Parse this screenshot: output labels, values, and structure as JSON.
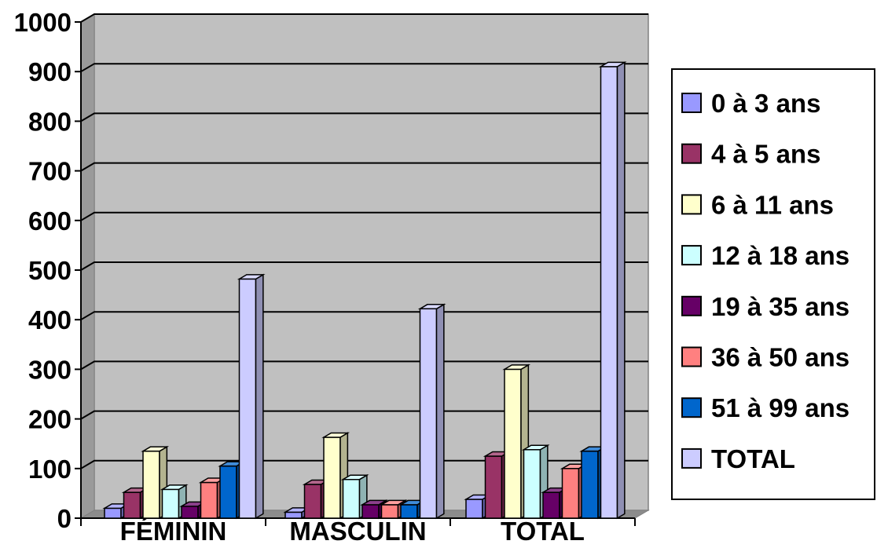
{
  "chart_data": {
    "type": "bar",
    "title": "",
    "xlabel": "",
    "ylabel": "",
    "ylim": [
      0,
      1000
    ],
    "yticks": [
      0,
      100,
      200,
      300,
      400,
      500,
      600,
      700,
      800,
      900,
      1000
    ],
    "grid": true,
    "legend_position": "right",
    "categories": [
      "FÉMININ",
      "MASCULIN",
      "TOTAL"
    ],
    "series": [
      {
        "name": "0 à 3 ans",
        "color": "#9999ff",
        "values": [
          20,
          12,
          38
        ]
      },
      {
        "name": "4 à 5 ans",
        "color": "#993366",
        "values": [
          52,
          68,
          125
        ]
      },
      {
        "name": "6 à 11 ans",
        "color": "#ffffcc",
        "values": [
          135,
          163,
          300
        ]
      },
      {
        "name": "12 à 18 ans",
        "color": "#ccffff",
        "values": [
          58,
          78,
          138
        ]
      },
      {
        "name": "19 à 35 ans",
        "color": "#660066",
        "values": [
          24,
          27,
          52
        ]
      },
      {
        "name": "36 à 50 ans",
        "color": "#ff8080",
        "values": [
          72,
          27,
          100
        ]
      },
      {
        "name": "51 à 99 ans",
        "color": "#0066cc",
        "values": [
          105,
          27,
          135
        ]
      },
      {
        "name": "TOTAL",
        "color": "#ccccff",
        "values": [
          482,
          422,
          910
        ]
      }
    ],
    "plot_background": "#c0c0c0"
  }
}
